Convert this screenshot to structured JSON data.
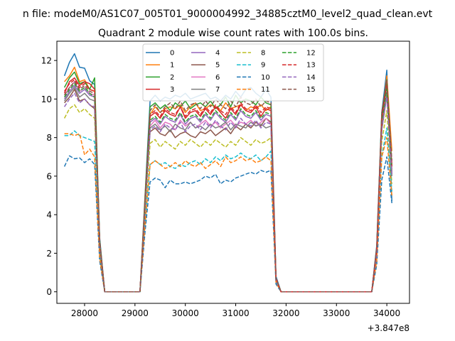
{
  "figure": {
    "suptitle": "n file: modeM0/AS1C07_005T01_9000004992_34885cztM0_level2_quad_clean.evt"
  },
  "chart_data": {
    "type": "line",
    "title": "Quadrant 2 module wise count rates with 100.0s bins.",
    "xlabel": "",
    "ylabel": "",
    "x_offset_label": "+3.847e8",
    "xlim": [
      27450,
      34450
    ],
    "ylim": [
      -0.6,
      13.0
    ],
    "xticks": [
      28000,
      29000,
      30000,
      31000,
      32000,
      33000,
      34000
    ],
    "xtick_labels": [
      "28000",
      "29000",
      "30000",
      "31000",
      "32000",
      "33000",
      "34000"
    ],
    "yticks": [
      0,
      2,
      4,
      6,
      8,
      10,
      12
    ],
    "ytick_labels": [
      "0",
      "2",
      "4",
      "6",
      "8",
      "10",
      "12"
    ],
    "grid": false,
    "legend": {
      "placement": "upper-center",
      "columns": 4
    },
    "x": [
      27600,
      27700,
      27800,
      27900,
      28000,
      28100,
      28200,
      28300,
      28400,
      28500,
      28600,
      28700,
      28800,
      28900,
      29000,
      29100,
      29200,
      29300,
      29400,
      29500,
      29600,
      29700,
      29800,
      29900,
      30000,
      30100,
      30200,
      30300,
      30400,
      30500,
      30600,
      30700,
      30800,
      30900,
      31000,
      31100,
      31200,
      31300,
      31400,
      31500,
      31600,
      31700,
      31800,
      31900,
      32000,
      32100,
      32200,
      32300,
      32400,
      32500,
      32600,
      32700,
      32800,
      32900,
      33000,
      33100,
      33200,
      33300,
      33400,
      33500,
      33600,
      33700,
      33800,
      33900,
      34000,
      34100
    ],
    "series": [
      {
        "name": "0",
        "color": "#1f77b4",
        "dash": "solid",
        "values": [
          11.2,
          11.9,
          12.35,
          11.65,
          11.6,
          10.95,
          10.75,
          2.8,
          0,
          0,
          0,
          0,
          0,
          0,
          0,
          0,
          5.0,
          9.9,
          10.2,
          9.9,
          10.1,
          10.0,
          10.2,
          10.1,
          10.3,
          10.0,
          10.1,
          10.2,
          10.3,
          10.0,
          10.1,
          9.9,
          10.2,
          10.0,
          10.4,
          10.1,
          10.5,
          10.6,
          10.3,
          10.1,
          10.5,
          10.1,
          0.8,
          0,
          0,
          0,
          0,
          0,
          0,
          0,
          0,
          0,
          0,
          0,
          0,
          0,
          0,
          0,
          0,
          0,
          0,
          0,
          2.4,
          9.3,
          11.5,
          4.7
        ]
      },
      {
        "name": "1",
        "color": "#ff7f0e",
        "dash": "solid",
        "values": [
          10.9,
          11.2,
          11.65,
          10.9,
          11.0,
          10.5,
          10.4,
          2.6,
          0,
          0,
          0,
          0,
          0,
          0,
          0,
          0,
          4.9,
          9.2,
          9.6,
          9.3,
          9.5,
          9.6,
          9.5,
          9.7,
          9.3,
          9.6,
          9.8,
          9.4,
          9.5,
          9.7,
          9.6,
          9.4,
          9.8,
          9.5,
          9.6,
          9.7,
          9.4,
          9.6,
          9.5,
          9.7,
          9.4,
          9.6,
          0.7,
          0,
          0,
          0,
          0,
          0,
          0,
          0,
          0,
          0,
          0,
          0,
          0,
          0,
          0,
          0,
          0,
          0,
          0,
          0,
          2.2,
          9.0,
          11.2,
          7.3
        ]
      },
      {
        "name": "2",
        "color": "#2ca02c",
        "dash": "solid",
        "values": [
          10.6,
          11.1,
          11.4,
          10.8,
          10.9,
          10.5,
          11.1,
          2.7,
          0,
          0,
          0,
          0,
          0,
          0,
          0,
          0,
          4.8,
          9.6,
          9.8,
          9.5,
          9.7,
          9.4,
          9.8,
          9.6,
          9.9,
          9.5,
          9.7,
          9.8,
          9.6,
          9.9,
          9.5,
          9.7,
          10.1,
          9.6,
          10.2,
          9.8,
          10.0,
          9.9,
          9.7,
          10.1,
          9.8,
          9.7,
          0.7,
          0,
          0,
          0,
          0,
          0,
          0,
          0,
          0,
          0,
          0,
          0,
          0,
          0,
          0,
          0,
          0,
          0,
          0,
          0,
          2.3,
          9.2,
          11.0,
          6.2
        ]
      },
      {
        "name": "3",
        "color": "#d62728",
        "dash": "solid",
        "values": [
          10.3,
          10.9,
          11.1,
          10.7,
          10.9,
          10.8,
          10.5,
          2.6,
          0,
          0,
          0,
          0,
          0,
          0,
          0,
          0,
          4.6,
          9.1,
          9.3,
          9.0,
          9.4,
          9.2,
          9.1,
          9.6,
          9.0,
          9.3,
          9.4,
          9.1,
          9.5,
          9.2,
          9.6,
          9.3,
          9.0,
          9.5,
          9.2,
          9.7,
          9.4,
          9.3,
          9.6,
          9.1,
          9.5,
          9.4,
          0.6,
          0,
          0,
          0,
          0,
          0,
          0,
          0,
          0,
          0,
          0,
          0,
          0,
          0,
          0,
          0,
          0,
          0,
          0,
          0,
          2.2,
          8.9,
          10.7,
          6.6
        ]
      },
      {
        "name": "4",
        "color": "#9467bd",
        "dash": "solid",
        "values": [
          10.0,
          10.4,
          10.7,
          10.3,
          10.5,
          10.2,
          10.1,
          2.5,
          0,
          0,
          0,
          0,
          0,
          0,
          0,
          0,
          4.5,
          8.8,
          9.0,
          8.7,
          9.1,
          8.9,
          8.8,
          9.2,
          8.7,
          9.0,
          9.1,
          8.8,
          9.2,
          8.9,
          9.3,
          9.0,
          8.8,
          9.2,
          8.9,
          9.4,
          9.1,
          9.0,
          9.3,
          8.9,
          9.2,
          9.1,
          0.6,
          0,
          0,
          0,
          0,
          0,
          0,
          0,
          0,
          0,
          0,
          0,
          0,
          0,
          0,
          0,
          0,
          0,
          0,
          0,
          2.1,
          8.7,
          10.5,
          6.3
        ]
      },
      {
        "name": "5",
        "color": "#8c564b",
        "dash": "solid",
        "values": [
          9.8,
          10.1,
          10.5,
          9.9,
          10.0,
          9.7,
          9.5,
          2.4,
          0,
          0,
          0,
          0,
          0,
          0,
          0,
          0,
          4.4,
          8.3,
          8.5,
          8.2,
          8.1,
          8.4,
          8.0,
          8.2,
          8.3,
          8.1,
          8.0,
          8.3,
          8.2,
          8.4,
          8.1,
          8.3,
          8.5,
          8.2,
          8.6,
          8.4,
          8.7,
          8.5,
          8.8,
          8.6,
          9.0,
          8.8,
          0.6,
          0,
          0,
          0,
          0,
          0,
          0,
          0,
          0,
          0,
          0,
          0,
          0,
          0,
          0,
          0,
          0,
          0,
          0,
          0,
          2.0,
          8.4,
          10.2,
          6.1
        ]
      },
      {
        "name": "6",
        "color": "#e377c2",
        "dash": "solid",
        "values": [
          10.2,
          10.6,
          10.9,
          10.4,
          10.6,
          10.3,
          10.2,
          2.5,
          0,
          0,
          0,
          0,
          0,
          0,
          0,
          0,
          4.5,
          8.6,
          8.9,
          8.5,
          8.8,
          8.7,
          8.4,
          8.9,
          8.6,
          8.8,
          8.5,
          8.7,
          8.9,
          8.6,
          8.8,
          8.5,
          8.7,
          8.9,
          8.6,
          8.8,
          8.7,
          8.9,
          8.6,
          8.8,
          9.0,
          8.7,
          0.6,
          0,
          0,
          0,
          0,
          0,
          0,
          0,
          0,
          0,
          0,
          0,
          0,
          0,
          0,
          0,
          0,
          0,
          0,
          0,
          2.1,
          8.6,
          10.4,
          6.2
        ]
      },
      {
        "name": "7",
        "color": "#7f7f7f",
        "dash": "solid",
        "values": [
          9.9,
          10.3,
          10.6,
          10.1,
          10.3,
          10.0,
          9.9,
          2.4,
          0,
          0,
          0,
          0,
          0,
          0,
          0,
          0,
          4.4,
          8.5,
          8.7,
          8.4,
          8.6,
          8.3,
          8.7,
          8.5,
          8.4,
          8.8,
          8.5,
          8.6,
          8.4,
          8.7,
          8.5,
          8.6,
          8.8,
          8.4,
          8.7,
          8.6,
          8.5,
          8.8,
          8.6,
          8.7,
          8.5,
          8.6,
          0.6,
          0,
          0,
          0,
          0,
          0,
          0,
          0,
          0,
          0,
          0,
          0,
          0,
          0,
          0,
          0,
          0,
          0,
          0,
          0,
          2.0,
          8.5,
          10.3,
          6.0
        ]
      },
      {
        "name": "8",
        "color": "#bcbd22",
        "dash": "dashed",
        "values": [
          9.0,
          9.5,
          9.7,
          9.3,
          9.5,
          9.2,
          9.0,
          2.2,
          0,
          0,
          0,
          0,
          0,
          0,
          0,
          0,
          4.0,
          7.7,
          7.9,
          7.5,
          7.8,
          7.6,
          7.4,
          7.8,
          7.6,
          7.9,
          7.7,
          7.5,
          7.8,
          7.6,
          7.9,
          7.7,
          7.5,
          7.8,
          7.6,
          8.0,
          7.8,
          7.6,
          7.9,
          7.7,
          7.8,
          8.0,
          0.5,
          0,
          0,
          0,
          0,
          0,
          0,
          0,
          0,
          0,
          0,
          0,
          0,
          0,
          0,
          0,
          0,
          0,
          0,
          0,
          1.9,
          7.8,
          9.4,
          5.6
        ]
      },
      {
        "name": "9",
        "color": "#17becf",
        "dash": "dashed",
        "values": [
          8.1,
          8.1,
          8.35,
          8.1,
          8.0,
          7.9,
          7.8,
          1.9,
          0,
          0,
          0,
          0,
          0,
          0,
          0,
          0,
          3.6,
          6.6,
          6.8,
          6.6,
          6.7,
          6.5,
          6.4,
          6.6,
          6.5,
          6.7,
          6.8,
          6.6,
          6.9,
          6.7,
          7.0,
          6.8,
          7.1,
          6.9,
          7.0,
          7.2,
          7.0,
          6.9,
          7.1,
          6.8,
          7.0,
          7.3,
          0.5,
          0,
          0,
          0,
          0,
          0,
          0,
          0,
          0,
          0,
          0,
          0,
          0,
          0,
          0,
          0,
          0,
          0,
          0,
          0,
          1.7,
          7.0,
          8.5,
          5.2
        ]
      },
      {
        "name": "10",
        "color": "#1f77b4",
        "dash": "dashed",
        "values": [
          6.5,
          7.05,
          6.9,
          6.95,
          6.7,
          6.9,
          6.6,
          1.6,
          0,
          0,
          0,
          0,
          0,
          0,
          0,
          0,
          3.1,
          5.7,
          5.9,
          5.8,
          5.4,
          5.8,
          5.6,
          5.6,
          5.7,
          5.6,
          5.7,
          5.8,
          6.0,
          5.9,
          6.1,
          5.6,
          5.8,
          5.7,
          5.9,
          6.0,
          6.1,
          6.2,
          6.1,
          6.3,
          6.2,
          6.3,
          0.4,
          0,
          0,
          0,
          0,
          0,
          0,
          0,
          0,
          0,
          0,
          0,
          0,
          0,
          0,
          0,
          0,
          0,
          0,
          0,
          1.4,
          5.8,
          7.0,
          4.6
        ]
      },
      {
        "name": "11",
        "color": "#ff7f0e",
        "dash": "dashed",
        "values": [
          8.2,
          8.2,
          8.1,
          8.2,
          7.1,
          7.4,
          7.0,
          1.8,
          0,
          0,
          0,
          0,
          0,
          0,
          0,
          0,
          3.5,
          6.6,
          6.8,
          6.6,
          6.4,
          6.5,
          6.7,
          6.5,
          6.8,
          6.6,
          6.5,
          6.7,
          6.4,
          6.6,
          6.8,
          6.5,
          7.0,
          6.7,
          6.8,
          7.0,
          6.8,
          6.9,
          6.7,
          6.8,
          7.0,
          6.8,
          0.5,
          0,
          0,
          0,
          0,
          0,
          0,
          0,
          0,
          0,
          0,
          0,
          0,
          0,
          0,
          0,
          0,
          0,
          0,
          0,
          1.6,
          7.0,
          8.0,
          5.0
        ]
      },
      {
        "name": "12",
        "color": "#2ca02c",
        "dash": "dashed",
        "values": [
          10.1,
          10.5,
          10.8,
          10.4,
          10.6,
          10.3,
          10.1,
          2.5,
          0,
          0,
          0,
          0,
          0,
          0,
          0,
          0,
          4.5,
          8.9,
          9.1,
          8.8,
          9.2,
          9.0,
          8.9,
          9.3,
          8.8,
          9.1,
          9.2,
          8.9,
          9.3,
          9.0,
          9.4,
          9.1,
          8.9,
          9.3,
          9.0,
          9.5,
          9.2,
          9.1,
          9.4,
          9.0,
          9.3,
          9.2,
          0.6,
          0,
          0,
          0,
          0,
          0,
          0,
          0,
          0,
          0,
          0,
          0,
          0,
          0,
          0,
          0,
          0,
          0,
          0,
          0,
          2.1,
          8.8,
          10.6,
          6.4
        ]
      },
      {
        "name": "13",
        "color": "#d62728",
        "dash": "dashed",
        "values": [
          10.4,
          10.8,
          11.0,
          10.6,
          10.8,
          10.5,
          10.4,
          2.6,
          0,
          0,
          0,
          0,
          0,
          0,
          0,
          0,
          4.6,
          9.2,
          9.4,
          9.1,
          9.5,
          9.3,
          9.2,
          9.6,
          9.1,
          9.4,
          9.5,
          9.2,
          9.6,
          9.3,
          9.7,
          9.4,
          9.2,
          9.6,
          9.3,
          9.8,
          9.5,
          9.4,
          9.7,
          9.3,
          9.6,
          9.5,
          0.7,
          0,
          0,
          0,
          0,
          0,
          0,
          0,
          0,
          0,
          0,
          0,
          0,
          0,
          0,
          0,
          0,
          0,
          0,
          0,
          2.2,
          9.0,
          10.9,
          6.5
        ]
      },
      {
        "name": "14",
        "color": "#9467bd",
        "dash": "dashed",
        "values": [
          9.6,
          10.0,
          10.3,
          9.8,
          10.0,
          9.7,
          9.6,
          2.4,
          0,
          0,
          0,
          0,
          0,
          0,
          0,
          0,
          4.3,
          8.4,
          8.6,
          8.3,
          8.7,
          8.5,
          8.4,
          8.8,
          8.3,
          8.6,
          8.7,
          8.4,
          8.8,
          8.5,
          8.9,
          8.6,
          8.4,
          8.8,
          8.5,
          9.0,
          8.7,
          8.6,
          8.9,
          8.5,
          8.8,
          8.7,
          0.6,
          0,
          0,
          0,
          0,
          0,
          0,
          0,
          0,
          0,
          0,
          0,
          0,
          0,
          0,
          0,
          0,
          0,
          0,
          0,
          2.0,
          8.5,
          10.1,
          6.0
        ]
      },
      {
        "name": "15",
        "color": "#8c564b",
        "dash": "dashed",
        "values": [
          10.2,
          10.6,
          10.9,
          10.5,
          10.7,
          10.4,
          10.3,
          2.6,
          0,
          0,
          0,
          0,
          0,
          0,
          0,
          0,
          4.7,
          9.4,
          9.7,
          9.3,
          9.6,
          9.8,
          9.5,
          9.9,
          9.4,
          9.7,
          9.8,
          9.5,
          9.9,
          9.6,
          10.0,
          9.7,
          9.5,
          9.9,
          9.6,
          10.1,
          9.8,
          9.7,
          10.0,
          9.6,
          9.9,
          9.8,
          0.7,
          0,
          0,
          0,
          0,
          0,
          0,
          0,
          0,
          0,
          0,
          0,
          0,
          0,
          0,
          0,
          0,
          0,
          0,
          0,
          2.3,
          9.3,
          11.0,
          6.8
        ]
      }
    ]
  }
}
